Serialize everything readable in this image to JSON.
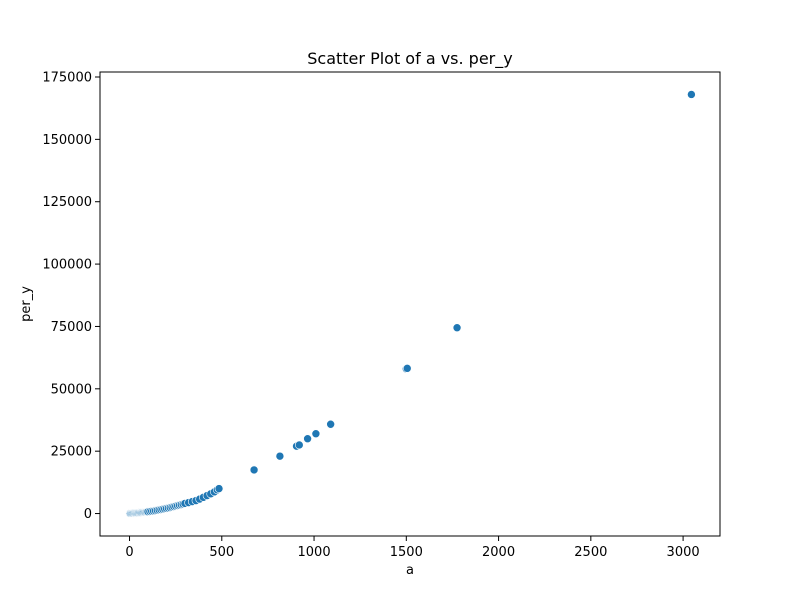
{
  "chart_data": {
    "type": "scatter",
    "title": "Scatter Plot of a vs. per_y",
    "xlabel": "a",
    "ylabel": "per_y",
    "xlim": [
      -160,
      3200
    ],
    "ylim": [
      -9000,
      177000
    ],
    "xticks": [
      0,
      500,
      1000,
      1500,
      2000,
      2500,
      3000
    ],
    "yticks": [
      0,
      25000,
      50000,
      75000,
      100000,
      125000,
      150000,
      175000
    ],
    "grid": false,
    "legend": "none",
    "marker_color": "#1f77b4",
    "points": [
      [
        2,
        0
      ],
      [
        5,
        20
      ],
      [
        10,
        40
      ],
      [
        15,
        60
      ],
      [
        20,
        90
      ],
      [
        25,
        120
      ],
      [
        30,
        150
      ],
      [
        35,
        180
      ],
      [
        40,
        210
      ],
      [
        45,
        240
      ],
      [
        50,
        270
      ],
      [
        55,
        300
      ],
      [
        60,
        340
      ],
      [
        65,
        380
      ],
      [
        70,
        420
      ],
      [
        75,
        460
      ],
      [
        80,
        500
      ],
      [
        85,
        540
      ],
      [
        90,
        600
      ],
      [
        95,
        650
      ],
      [
        100,
        700
      ],
      [
        110,
        800
      ],
      [
        120,
        900
      ],
      [
        130,
        1000
      ],
      [
        140,
        1150
      ],
      [
        150,
        1300
      ],
      [
        160,
        1450
      ],
      [
        170,
        1600
      ],
      [
        180,
        1750
      ],
      [
        190,
        1900
      ],
      [
        200,
        2050
      ],
      [
        210,
        2200
      ],
      [
        220,
        2400
      ],
      [
        230,
        2600
      ],
      [
        240,
        2800
      ],
      [
        250,
        3000
      ],
      [
        260,
        3200
      ],
      [
        270,
        3400
      ],
      [
        280,
        3600
      ],
      [
        290,
        3800
      ],
      [
        300,
        4050
      ],
      [
        320,
        4400
      ],
      [
        340,
        4800
      ],
      [
        360,
        5200
      ],
      [
        380,
        5800
      ],
      [
        400,
        6500
      ],
      [
        420,
        7200
      ],
      [
        440,
        7900
      ],
      [
        460,
        8700
      ],
      [
        475,
        9500
      ],
      [
        485,
        10000
      ],
      [
        675,
        17500
      ],
      [
        815,
        23000
      ],
      [
        905,
        27000
      ],
      [
        920,
        27500
      ],
      [
        965,
        30000
      ],
      [
        1010,
        32000
      ],
      [
        1090,
        35800
      ],
      [
        1500,
        58000
      ],
      [
        1505,
        58200
      ],
      [
        1775,
        74500
      ],
      [
        3045,
        168000
      ]
    ]
  }
}
